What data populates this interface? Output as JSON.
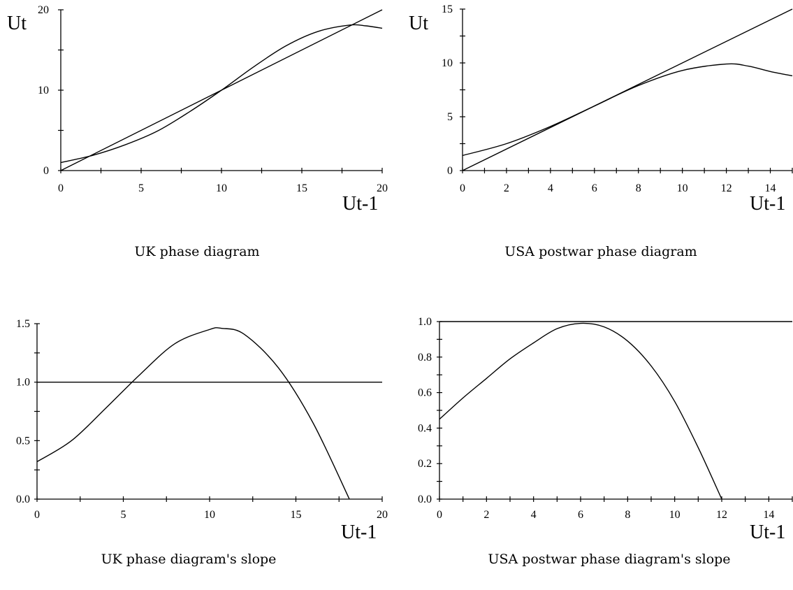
{
  "chart_data": [
    {
      "type": "line",
      "title": "UK phase diagram",
      "xlabel": "Ut-1",
      "ylabel": "Ut",
      "xlim": [
        0,
        20
      ],
      "ylim": [
        0,
        20
      ],
      "x_ticks": [
        "0",
        "5",
        "10",
        "15",
        "20"
      ],
      "y_ticks": [
        "0",
        "10",
        "20"
      ],
      "series": [
        {
          "x": [
            0,
            2,
            4,
            6,
            8,
            10,
            12,
            14,
            16,
            18,
            19,
            20
          ],
          "y": [
            1.0,
            1.9,
            3.2,
            4.9,
            7.3,
            10.0,
            12.9,
            15.5,
            17.3,
            18.1,
            18.0,
            17.7
          ]
        },
        {
          "x": [
            0,
            20
          ],
          "y": [
            0,
            20
          ]
        }
      ]
    },
    {
      "type": "line",
      "title": "USA postwar phase diagram",
      "xlabel": "Ut-1",
      "ylabel": "Ut",
      "xlim": [
        0,
        15
      ],
      "ylim": [
        0,
        15
      ],
      "x_ticks": [
        "0",
        "2",
        "4",
        "6",
        "8",
        "10",
        "12",
        "14"
      ],
      "y_ticks": [
        "0",
        "5",
        "10",
        "15"
      ],
      "series": [
        {
          "x": [
            0,
            2,
            4,
            6,
            8,
            10,
            12,
            13,
            14,
            15
          ],
          "y": [
            1.4,
            2.5,
            4.1,
            6.0,
            7.9,
            9.3,
            9.9,
            9.7,
            9.2,
            8.8
          ]
        },
        {
          "x": [
            0,
            15
          ],
          "y": [
            0,
            15
          ]
        }
      ]
    },
    {
      "type": "line",
      "title": "UK phase diagram's slope",
      "xlabel": "Ut-1",
      "ylabel": "",
      "xlim": [
        0,
        20
      ],
      "ylim": [
        0,
        1.5
      ],
      "x_ticks": [
        "0",
        "5",
        "10",
        "15",
        "20"
      ],
      "y_ticks": [
        "0.0",
        "0.5",
        "1.0",
        "1.5"
      ],
      "series": [
        {
          "x": [
            0,
            2,
            4,
            6,
            8,
            10,
            10.7,
            12,
            14,
            16,
            18.1
          ],
          "y": [
            0.32,
            0.5,
            0.78,
            1.07,
            1.33,
            1.45,
            1.46,
            1.41,
            1.12,
            0.65,
            0.0
          ]
        },
        {
          "x": [
            0,
            20
          ],
          "y": [
            1.0,
            1.0
          ]
        }
      ]
    },
    {
      "type": "line",
      "title": "USA postwar phase diagram's slope",
      "xlabel": "Ut-1",
      "ylabel": "",
      "xlim": [
        0,
        15
      ],
      "ylim": [
        0,
        1.0
      ],
      "x_ticks": [
        "0",
        "2",
        "4",
        "6",
        "8",
        "10",
        "12",
        "14"
      ],
      "y_ticks": [
        "0.0",
        "0.2",
        "0.4",
        "0.6",
        "0.8",
        "1.0"
      ],
      "series": [
        {
          "x": [
            0,
            1,
            2,
            3,
            4,
            5,
            6,
            7,
            8,
            9,
            10,
            11,
            12
          ],
          "y": [
            0.45,
            0.57,
            0.68,
            0.79,
            0.88,
            0.96,
            0.99,
            0.97,
            0.89,
            0.75,
            0.55,
            0.29,
            0.0
          ]
        },
        {
          "x": [
            0,
            15
          ],
          "y": [
            1.0,
            1.0
          ]
        }
      ]
    }
  ]
}
